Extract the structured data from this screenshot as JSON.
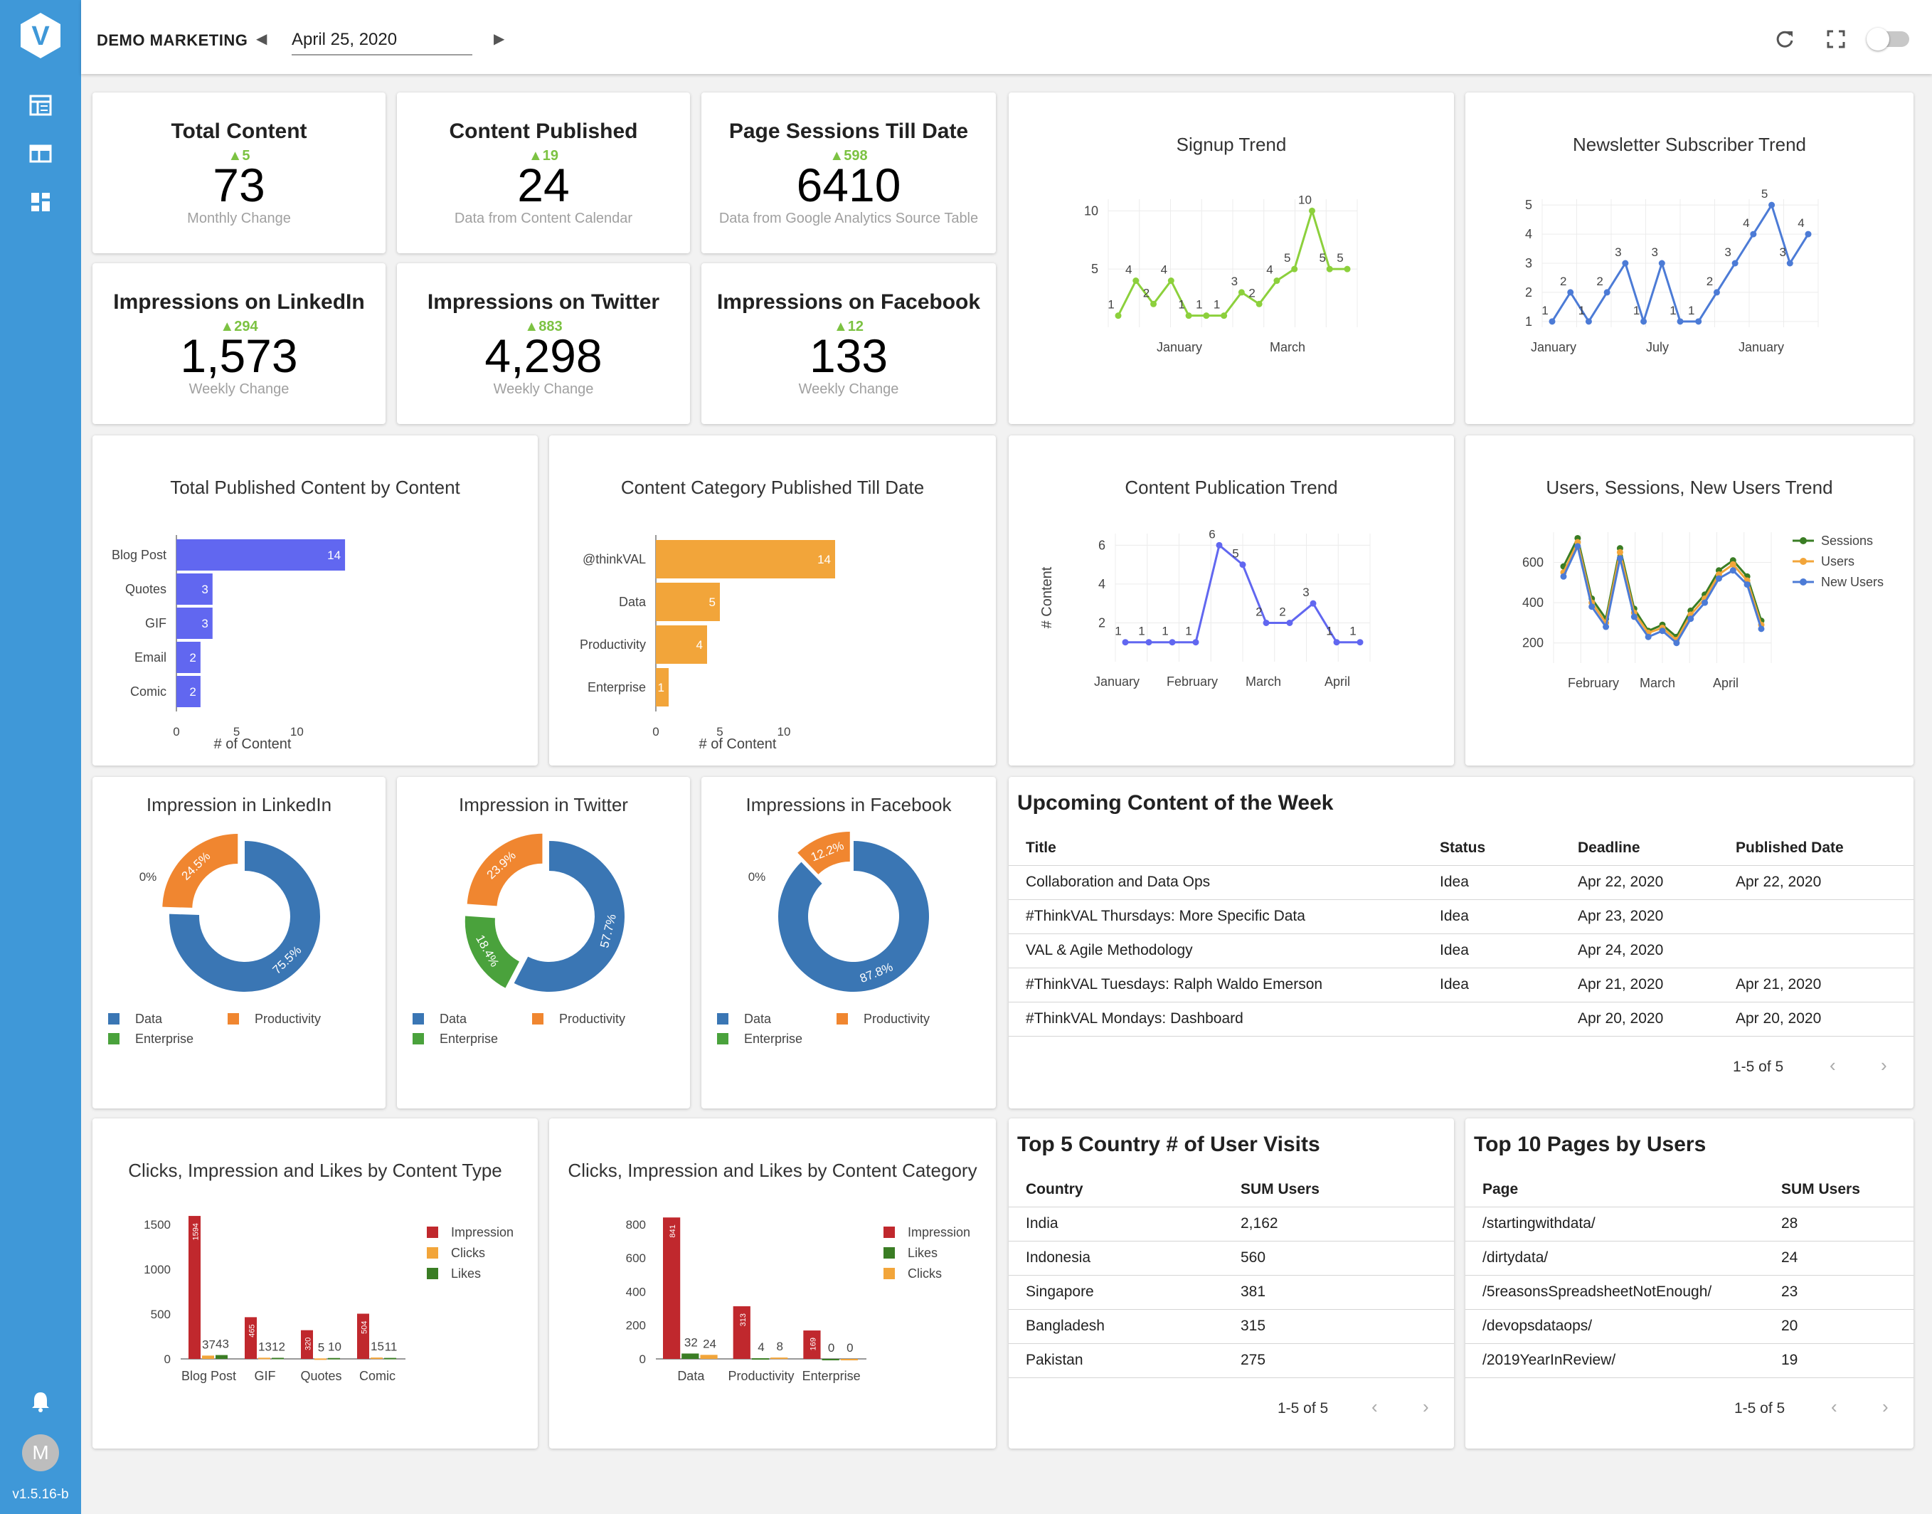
{
  "app": {
    "brand": "DEMO MARKETING",
    "date": "April 25, 2020",
    "version": "v1.5.16-b",
    "avatar_initial": "M",
    "accent": "#3f98d8"
  },
  "kpis": [
    {
      "title": "Total Content",
      "delta": "▲5",
      "value": "73",
      "sub": "Monthly Change"
    },
    {
      "title": "Content Published",
      "delta": "▲19",
      "value": "24",
      "sub": "Data from Content Calendar"
    },
    {
      "title": "Page Sessions Till Date",
      "delta": "▲598",
      "value": "6410",
      "sub": "Data from Google Analytics Source Table"
    },
    {
      "title": "Impressions on LinkedIn",
      "delta": "▲294",
      "value": "1,573",
      "sub": "Weekly Change"
    },
    {
      "title": "Impressions on Twitter",
      "delta": "▲883",
      "value": "4,298",
      "sub": "Weekly Change"
    },
    {
      "title": "Impressions on Facebook",
      "delta": "▲12",
      "value": "133",
      "sub": "Weekly Change"
    }
  ],
  "chart_data": [
    {
      "id": "signup",
      "type": "line",
      "title": "Signup Trend",
      "color": "#8cd03c",
      "x_ticks": [
        "January",
        "March"
      ],
      "y_ticks": [
        5,
        10
      ],
      "ylim": [
        0,
        11
      ],
      "values": [
        1,
        4,
        2,
        4,
        1,
        1,
        1,
        3,
        2,
        4,
        5,
        10,
        5,
        5
      ]
    },
    {
      "id": "newsletter",
      "type": "line",
      "title": "Newsletter Subscriber Trend",
      "color": "#4c7bd6",
      "x_ticks": [
        "January",
        "July",
        "January"
      ],
      "y_ticks": [
        1,
        2,
        3,
        4,
        5
      ],
      "ylim": [
        0.8,
        5.2
      ],
      "values": [
        1,
        2,
        1,
        2,
        3,
        1,
        3,
        1,
        1,
        2,
        3,
        4,
        5,
        3,
        4
      ]
    },
    {
      "id": "content-by-type",
      "type": "bar",
      "title": "Total Published Content by Content",
      "color": "#6167f0",
      "categories": [
        "Blog Post",
        "Quotes",
        "GIF",
        "Email",
        "Comic"
      ],
      "values": [
        14,
        3,
        3,
        2,
        2
      ],
      "xlabel": "# of Content",
      "x_ticks": [
        0,
        5,
        10
      ],
      "xlim": [
        0,
        15
      ]
    },
    {
      "id": "category-published",
      "type": "bar",
      "title": "Content Category Published Till Date",
      "color": "#f2a53a",
      "categories": [
        "@thinkVAL",
        "Data",
        "Productivity",
        "Enterprise"
      ],
      "values": [
        14,
        5,
        4,
        1
      ],
      "xlabel": "# of Content",
      "x_ticks": [
        0,
        5,
        10
      ],
      "xlim": [
        0,
        15
      ]
    },
    {
      "id": "publication-trend",
      "type": "line",
      "title": "Content Publication Trend",
      "color": "#6167f0",
      "ylabel": "# Content",
      "x_ticks": [
        "January",
        "February",
        "March",
        "April"
      ],
      "y_ticks": [
        2,
        4,
        6
      ],
      "ylim": [
        0,
        6.6
      ],
      "values": [
        1,
        1,
        1,
        1,
        6,
        5,
        2,
        2,
        3,
        1,
        1
      ]
    },
    {
      "id": "users-sessions",
      "type": "line",
      "title": "Users, Sessions, New Users Trend",
      "x_ticks": [
        "February",
        "March",
        "April"
      ],
      "y_ticks": [
        200,
        400,
        600
      ],
      "ylim": [
        100,
        750
      ],
      "series": [
        {
          "name": "Sessions",
          "color": "#3a7d24",
          "values": [
            580,
            720,
            420,
            320,
            670,
            370,
            260,
            290,
            230,
            360,
            440,
            560,
            610,
            530,
            310
          ]
        },
        {
          "name": "Users",
          "color": "#f2a53a",
          "values": [
            550,
            700,
            400,
            300,
            650,
            350,
            250,
            275,
            215,
            340,
            420,
            540,
            590,
            510,
            290
          ]
        },
        {
          "name": "New Users",
          "color": "#4c7bd6",
          "values": [
            530,
            680,
            380,
            280,
            620,
            330,
            230,
            260,
            200,
            320,
            400,
            520,
            560,
            490,
            270
          ]
        }
      ]
    },
    {
      "id": "donut-linkedin",
      "type": "pie",
      "title": "Impression in LinkedIn",
      "slices": [
        {
          "name": "Data",
          "value": 75.5,
          "label": "75.5%"
        },
        {
          "name": "Productivity",
          "value": 24.5,
          "label": "24.5%"
        },
        {
          "name": "Enterprise",
          "value": 0,
          "label": "0%"
        }
      ]
    },
    {
      "id": "donut-twitter",
      "type": "pie",
      "title": "Impression in Twitter",
      "slices": [
        {
          "name": "Data",
          "value": 57.7,
          "label": "57.7%"
        },
        {
          "name": "Enterprise",
          "value": 18.4,
          "label": "18.4%"
        },
        {
          "name": "Productivity",
          "value": 23.9,
          "label": "23.9%"
        }
      ]
    },
    {
      "id": "donut-facebook",
      "type": "pie",
      "title": "Impressions in Facebook",
      "slices": [
        {
          "name": "Data",
          "value": 87.8,
          "label": "87.8%"
        },
        {
          "name": "Enterprise",
          "value": 0,
          "label": "0%"
        },
        {
          "name": "Productivity",
          "value": 12.2,
          "label": "12.2%"
        }
      ]
    },
    {
      "id": "clicks-by-type",
      "type": "bar",
      "title": "Clicks, Impression and Likes by Content Type",
      "categories": [
        "Blog Post",
        "GIF",
        "Quotes",
        "Comic"
      ],
      "y_ticks": [
        0,
        500,
        1000,
        1500
      ],
      "ylim": [
        0,
        1650
      ],
      "series": [
        {
          "name": "Impression",
          "color": "#c0282d",
          "values": [
            1594,
            465,
            320,
            504
          ]
        },
        {
          "name": "Clicks",
          "color": "#f2a53a",
          "values": [
            37,
            13,
            5,
            15
          ]
        },
        {
          "name": "Likes",
          "color": "#3a7d24",
          "values": [
            43,
            12,
            10,
            11
          ]
        }
      ]
    },
    {
      "id": "clicks-by-category",
      "type": "bar",
      "title": "Clicks, Impression and Likes by Content Category",
      "categories": [
        "Data",
        "Productivity",
        "Enterprise"
      ],
      "y_ticks": [
        0,
        200,
        400,
        600,
        800
      ],
      "ylim": [
        0,
        880
      ],
      "series": [
        {
          "name": "Impression",
          "color": "#c0282d",
          "values": [
            841,
            313,
            169
          ]
        },
        {
          "name": "Likes",
          "color": "#3a7d24",
          "values": [
            32,
            4,
            0
          ]
        },
        {
          "name": "Clicks",
          "color": "#f2a53a",
          "values": [
            24,
            8,
            0
          ]
        }
      ]
    }
  ],
  "donut_colors": {
    "Data": "#3a76b4",
    "Productivity": "#f08630",
    "Enterprise": "#4aa23c"
  },
  "upcoming": {
    "title": "Upcoming Content of the Week",
    "columns": [
      "Title",
      "Status",
      "Deadline",
      "Published Date"
    ],
    "rows": [
      [
        "Collaboration and Data Ops",
        "Idea",
        "Apr 22, 2020",
        "Apr 22, 2020"
      ],
      [
        "#ThinkVAL Thursdays: More Specific Data",
        "Idea",
        "Apr 23, 2020",
        ""
      ],
      [
        "VAL & Agile Methodology",
        "Idea",
        "Apr 24, 2020",
        ""
      ],
      [
        "#ThinkVAL Tuesdays: Ralph Waldo Emerson",
        "Idea",
        "Apr 21, 2020",
        "Apr 21, 2020"
      ],
      [
        "#ThinkVAL Mondays: Dashboard",
        "",
        "Apr 20, 2020",
        "Apr 20, 2020"
      ]
    ],
    "pager": "1-5 of 5"
  },
  "countries": {
    "title": "Top 5 Country # of User Visits",
    "columns": [
      "Country",
      "SUM Users"
    ],
    "rows": [
      [
        "India",
        "2,162"
      ],
      [
        "Indonesia",
        "560"
      ],
      [
        "Singapore",
        "381"
      ],
      [
        "Bangladesh",
        "315"
      ],
      [
        "Pakistan",
        "275"
      ]
    ],
    "pager": "1-5 of 5"
  },
  "pages": {
    "title": "Top 10 Pages by Users",
    "columns": [
      "Page",
      "SUM Users"
    ],
    "rows": [
      [
        "/startingwithdata/",
        "28"
      ],
      [
        "/dirtydata/",
        "24"
      ],
      [
        "/5reasonsSpreadsheetNotEnough/",
        "23"
      ],
      [
        "/devopsdataops/",
        "20"
      ],
      [
        "/2019YearInReview/",
        "19"
      ]
    ],
    "pager": "1-5 of 5"
  }
}
